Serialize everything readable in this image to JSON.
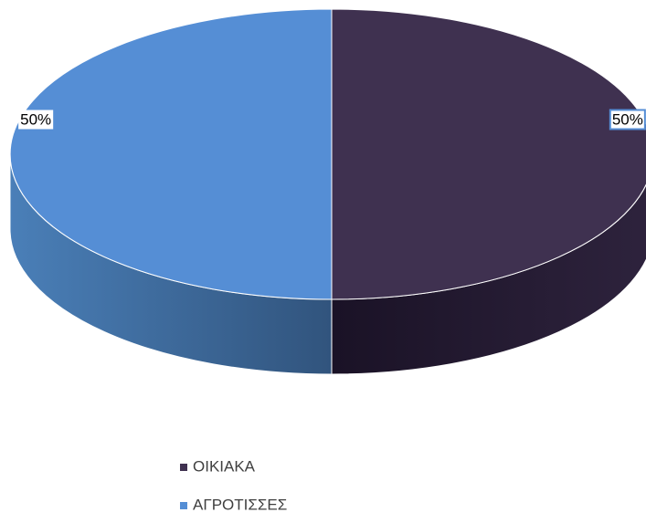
{
  "chart_data": {
    "type": "pie",
    "style": "3d",
    "title": "",
    "categories": [
      "ΟΙΚΙΑΚΑ",
      "ΑΓΡΟΤΙΣΣΕΣ"
    ],
    "values": [
      50,
      50
    ],
    "data_labels": [
      "50%",
      "50%"
    ],
    "colors": [
      "#3F3150",
      "#558ED5"
    ],
    "legend_position": "bottom"
  }
}
